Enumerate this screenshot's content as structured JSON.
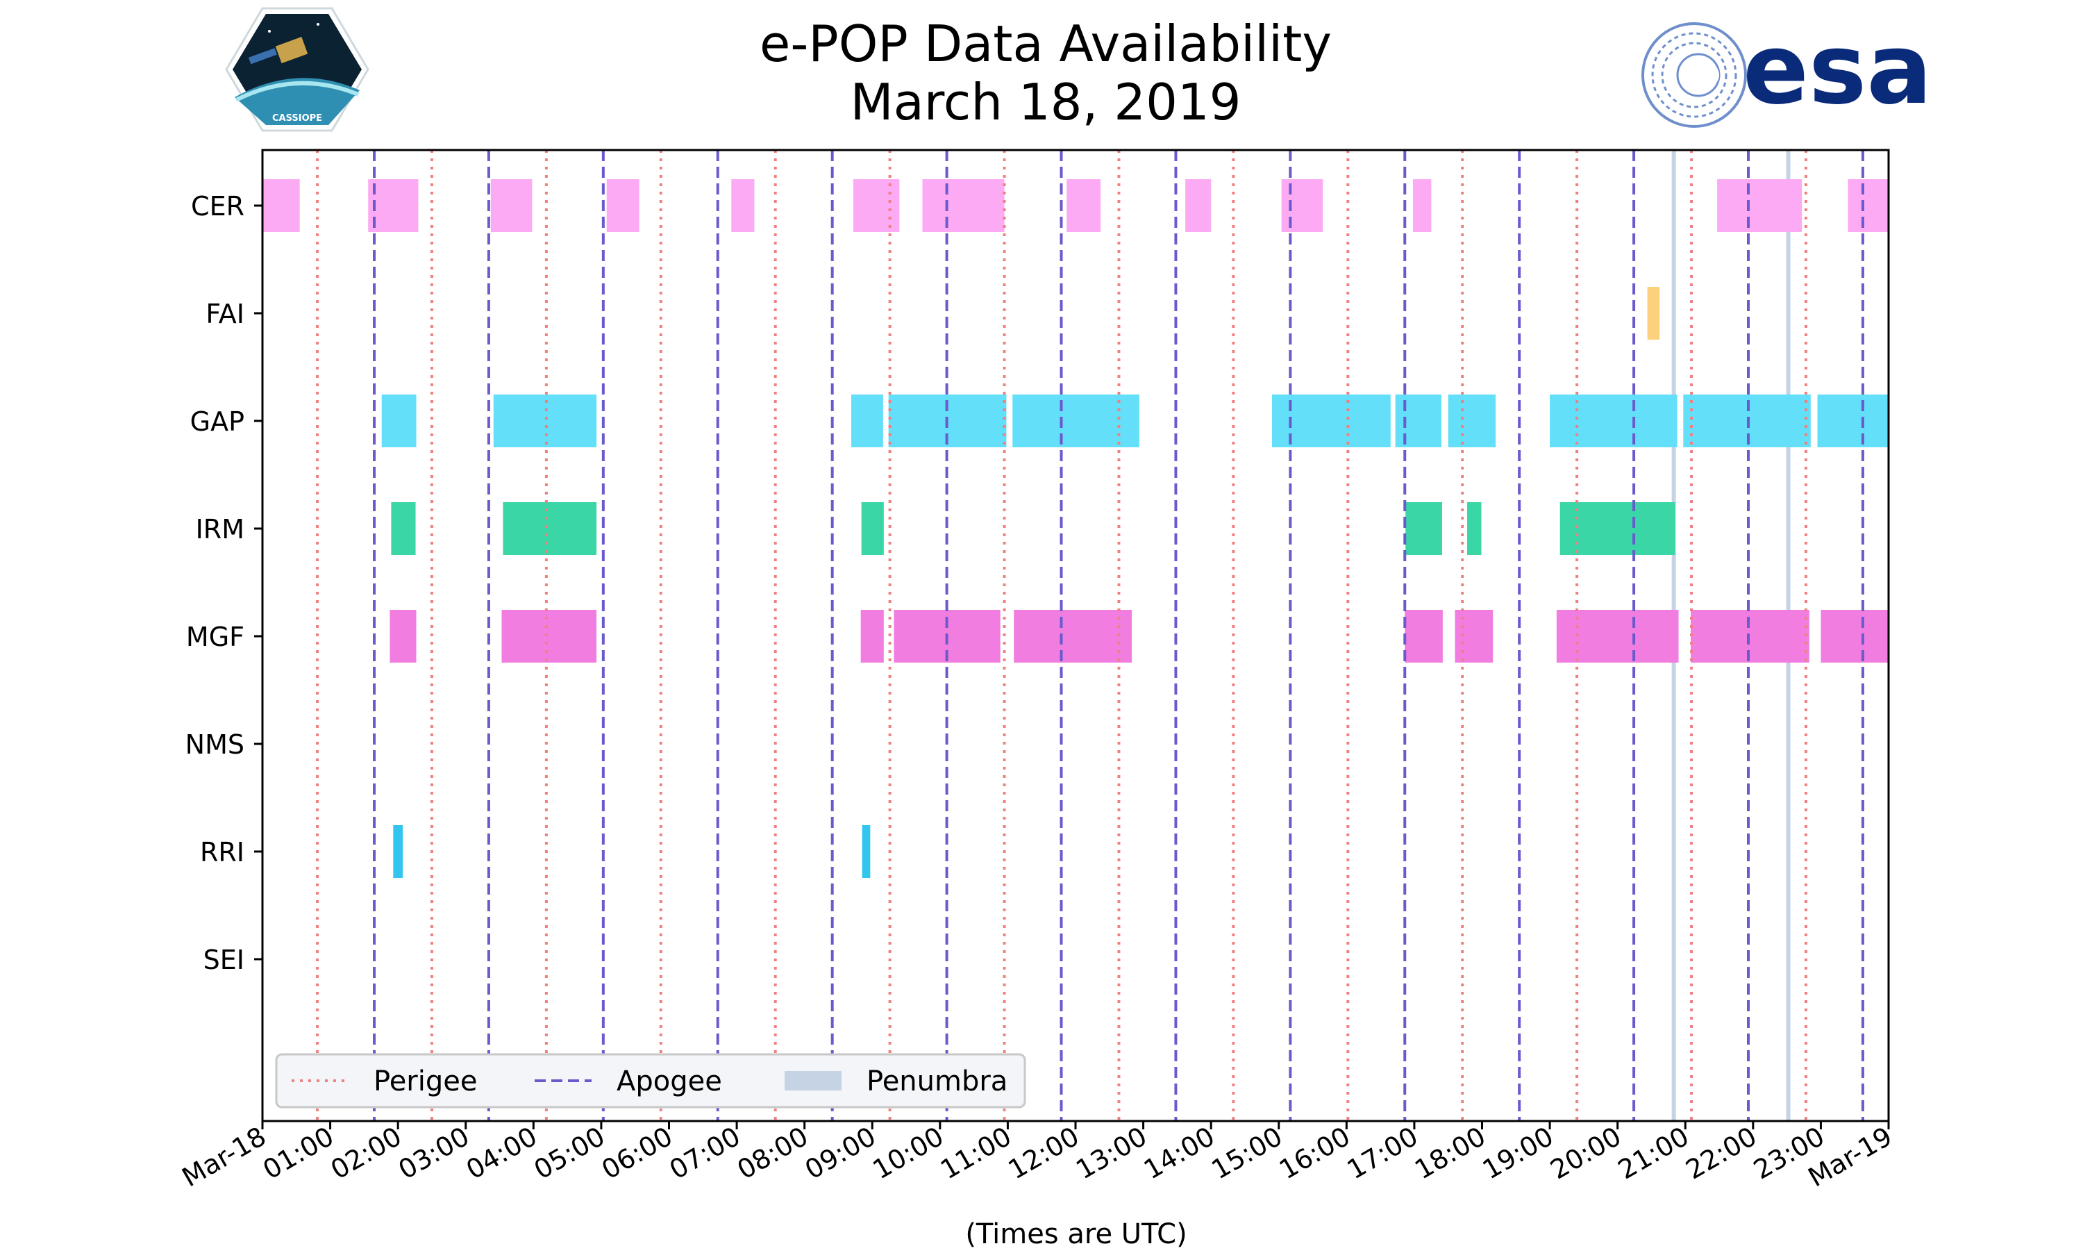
{
  "chart_data": {
    "type": "gantt",
    "title": "e-POP Data Availability",
    "subtitle": "March 18, 2019",
    "xlabel": "(Times are UTC)",
    "x_unit": "hours since 2019-03-18 00:00 UTC",
    "xlim": [
      0,
      24
    ],
    "x_ticks": [
      {
        "value": 0,
        "label": "Mar-18"
      },
      {
        "value": 1,
        "label": "01:00"
      },
      {
        "value": 2,
        "label": "02:00"
      },
      {
        "value": 3,
        "label": "03:00"
      },
      {
        "value": 4,
        "label": "04:00"
      },
      {
        "value": 5,
        "label": "05:00"
      },
      {
        "value": 6,
        "label": "06:00"
      },
      {
        "value": 7,
        "label": "07:00"
      },
      {
        "value": 8,
        "label": "08:00"
      },
      {
        "value": 9,
        "label": "09:00"
      },
      {
        "value": 10,
        "label": "10:00"
      },
      {
        "value": 11,
        "label": "11:00"
      },
      {
        "value": 12,
        "label": "12:00"
      },
      {
        "value": 13,
        "label": "13:00"
      },
      {
        "value": 14,
        "label": "14:00"
      },
      {
        "value": 15,
        "label": "15:00"
      },
      {
        "value": 16,
        "label": "16:00"
      },
      {
        "value": 17,
        "label": "17:00"
      },
      {
        "value": 18,
        "label": "18:00"
      },
      {
        "value": 19,
        "label": "19:00"
      },
      {
        "value": 20,
        "label": "20:00"
      },
      {
        "value": 21,
        "label": "21:00"
      },
      {
        "value": 22,
        "label": "22:00"
      },
      {
        "value": 23,
        "label": "23:00"
      },
      {
        "value": 24,
        "label": "Mar-19"
      }
    ],
    "instruments": [
      {
        "name": "CER",
        "color": "#fcaaf3",
        "intervals": [
          [
            0,
            0.55
          ],
          [
            1.56,
            2.3
          ],
          [
            3.37,
            3.98
          ],
          [
            5.08,
            5.56
          ],
          [
            6.92,
            7.26
          ],
          [
            8.72,
            9.4
          ],
          [
            9.74,
            10.95
          ],
          [
            11.87,
            12.37
          ],
          [
            13.62,
            14.0
          ],
          [
            15.04,
            15.65
          ],
          [
            16.98,
            17.25
          ],
          [
            21.47,
            22.72
          ],
          [
            23.4,
            24
          ]
        ]
      },
      {
        "name": "FAI",
        "color": "#fbd27b",
        "intervals": [
          [
            20.44,
            20.62
          ]
        ]
      },
      {
        "name": "GAP",
        "color": "#63dff9",
        "intervals": [
          [
            1.76,
            2.27
          ],
          [
            3.41,
            4.93
          ],
          [
            8.69,
            9.16
          ],
          [
            9.24,
            10.98
          ],
          [
            11.07,
            12.94
          ],
          [
            14.9,
            16.65
          ],
          [
            16.72,
            17.4
          ],
          [
            17.5,
            18.2
          ],
          [
            19.0,
            20.88
          ],
          [
            20.97,
            22.85
          ],
          [
            22.95,
            24
          ]
        ]
      },
      {
        "name": "IRM",
        "color": "#3ad6a6",
        "intervals": [
          [
            1.9,
            2.26
          ],
          [
            3.55,
            4.93
          ],
          [
            8.84,
            9.17
          ],
          [
            16.87,
            17.41
          ],
          [
            17.78,
            17.99
          ],
          [
            19.15,
            20.85
          ]
        ]
      },
      {
        "name": "MGF",
        "color": "#f17de0",
        "intervals": [
          [
            1.88,
            2.27
          ],
          [
            3.53,
            4.93
          ],
          [
            8.83,
            9.17
          ],
          [
            9.32,
            10.89
          ],
          [
            11.09,
            12.83
          ],
          [
            16.86,
            17.42
          ],
          [
            17.6,
            18.16
          ],
          [
            19.1,
            20.9
          ],
          [
            21.08,
            22.83
          ],
          [
            23.0,
            24
          ]
        ]
      },
      {
        "name": "NMS",
        "color": "#9aa0f5",
        "intervals": []
      },
      {
        "name": "RRI",
        "color": "#32c6ef",
        "intervals": [
          [
            1.93,
            2.07
          ],
          [
            8.85,
            8.97
          ]
        ]
      },
      {
        "name": "SEI",
        "color": "#f59a9a",
        "intervals": []
      }
    ],
    "perigee_times": [
      0.81,
      2.5,
      4.19,
      5.88,
      7.57,
      9.26,
      10.95,
      12.64,
      14.33,
      16.02,
      17.71,
      19.4,
      21.09,
      22.78
    ],
    "apogee_times": [
      1.65,
      3.34,
      5.03,
      6.72,
      8.41,
      10.1,
      11.79,
      13.48,
      15.17,
      16.86,
      18.55,
      20.24,
      21.93,
      23.62
    ],
    "penumbra_times": [
      20.83,
      22.52
    ],
    "legend": {
      "position": "lower-left",
      "entries": [
        {
          "label": "Perigee",
          "style": "dotted",
          "color": "#f08080"
        },
        {
          "label": "Apogee",
          "style": "dashed",
          "color": "#6a5acd"
        },
        {
          "label": "Penumbra",
          "style": "patch",
          "color": "#c5d3e5"
        }
      ]
    },
    "styles": {
      "perigee_color": "#f08080",
      "apogee_color": "#6a5acd",
      "penumbra_color": "#c5d3e5"
    }
  },
  "logos": {
    "left": {
      "icon": "cassiope-satellite-logo",
      "text": "CASSIOPE"
    },
    "right": {
      "icon": "esa-logo",
      "text": "esa",
      "color": "#0a2a7a"
    }
  }
}
